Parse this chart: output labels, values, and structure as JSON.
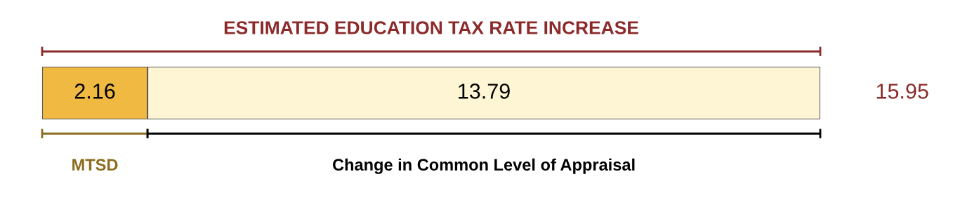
{
  "chart_data": {
    "type": "bar",
    "orientation": "horizontal",
    "stacked": true,
    "title": "ESTIMATED EDUCATION TAX RATE INCREASE",
    "categories": [
      null
    ],
    "series": [
      {
        "name": "MTSD",
        "color": "#f0b942",
        "values": [
          2.16
        ]
      },
      {
        "name": "Change in Common Level of Appraisal",
        "color": "#fdf5d3",
        "values": [
          13.79
        ]
      }
    ],
    "data_labels": true,
    "totals": [
      "15.95"
    ],
    "xlim": [
      0,
      15.95
    ],
    "tick_labels": false
  }
}
